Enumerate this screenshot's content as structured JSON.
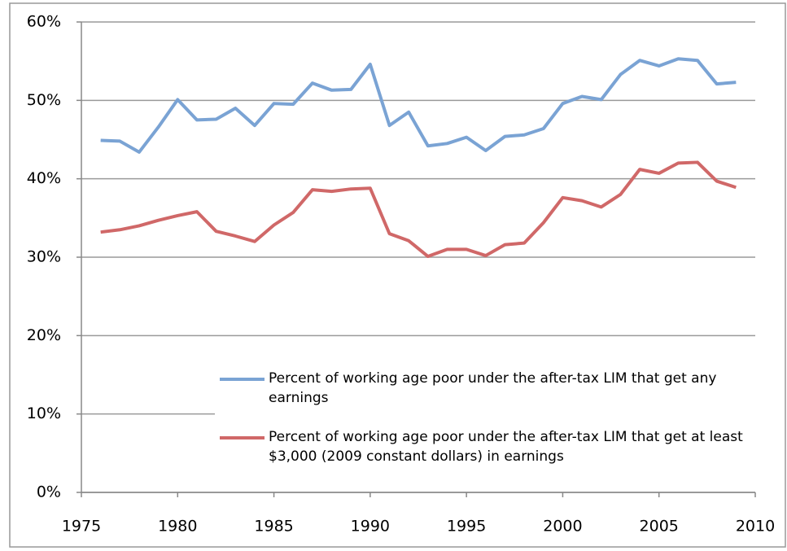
{
  "chart_data": {
    "type": "line",
    "x": [
      1976,
      1977,
      1978,
      1979,
      1980,
      1981,
      1982,
      1983,
      1984,
      1985,
      1986,
      1987,
      1988,
      1989,
      1990,
      1991,
      1992,
      1993,
      1994,
      1995,
      1996,
      1997,
      1998,
      1999,
      2000,
      2001,
      2002,
      2003,
      2004,
      2005,
      2006,
      2007,
      2008,
      2009
    ],
    "series": [
      {
        "name": "Percent of working age poor under the after-tax LIM that get any earnings",
        "color": "#7aa3d4",
        "values": [
          44.9,
          44.8,
          43.4,
          46.6,
          50.1,
          47.5,
          47.6,
          49.0,
          46.8,
          49.6,
          49.5,
          52.2,
          51.3,
          51.4,
          54.6,
          46.8,
          48.5,
          44.2,
          44.5,
          45.3,
          43.6,
          45.4,
          45.6,
          46.4,
          49.6,
          50.5,
          50.1,
          53.3,
          55.1,
          54.4,
          55.3,
          55.1,
          52.1,
          52.3
        ]
      },
      {
        "name": "Percent of working age poor under the after-tax LIM that get at least $3,000 (2009 constant dollars) in earnings",
        "color": "#d06868",
        "values": [
          33.2,
          33.5,
          34.0,
          34.7,
          35.3,
          35.8,
          33.3,
          32.7,
          32.0,
          34.1,
          35.7,
          38.6,
          38.4,
          38.7,
          38.8,
          33.0,
          32.1,
          30.1,
          31.0,
          31.0,
          30.2,
          31.6,
          31.8,
          34.4,
          37.6,
          37.2,
          36.4,
          38.0,
          41.2,
          40.7,
          42.0,
          42.1,
          39.7,
          38.9
        ]
      }
    ],
    "xlim": [
      1975,
      2010
    ],
    "xticks": [
      1975,
      1980,
      1985,
      1990,
      1995,
      2000,
      2005,
      2010
    ],
    "ylim": [
      0,
      60
    ],
    "yticks": [
      {
        "value": 0,
        "label": "0%"
      },
      {
        "value": 10,
        "label": "10%"
      },
      {
        "value": 20,
        "label": "20%"
      },
      {
        "value": 30,
        "label": "30%"
      },
      {
        "value": 40,
        "label": "40%"
      },
      {
        "value": 50,
        "label": "50%"
      },
      {
        "value": 60,
        "label": "60%"
      }
    ],
    "grid": true,
    "legend": "lower-right"
  }
}
